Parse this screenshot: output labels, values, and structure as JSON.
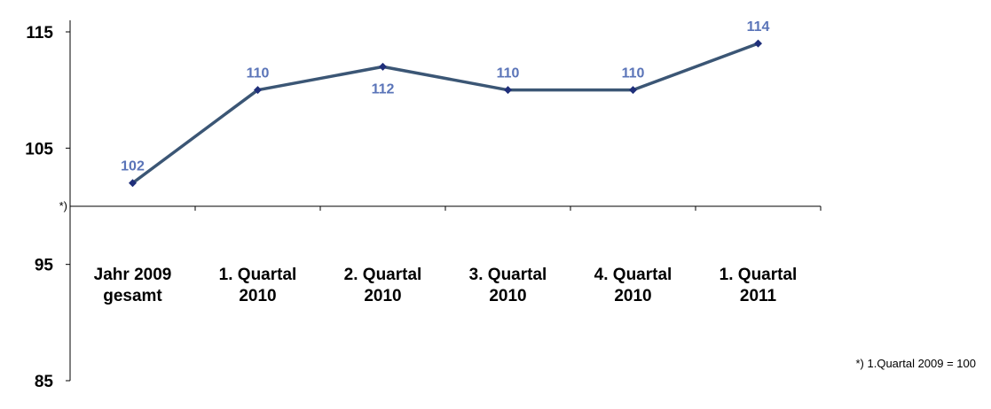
{
  "chart_data": {
    "type": "line",
    "categories": [
      [
        "Jahr 2009",
        "gesamt"
      ],
      [
        "1. Quartal",
        "2010"
      ],
      [
        "2. Quartal",
        "2010"
      ],
      [
        "3. Quartal",
        "2010"
      ],
      [
        "4. Quartal",
        "2010"
      ],
      [
        "1. Quartal",
        "2011"
      ]
    ],
    "series": [
      {
        "values": [
          102,
          110,
          112,
          110,
          110,
          114
        ]
      }
    ],
    "data_labels": [
      "102",
      "110",
      "112",
      "110",
      "110",
      "114"
    ],
    "data_label_position": [
      "above",
      "above",
      "below",
      "above",
      "above",
      "above"
    ],
    "y_ticks": [
      "115",
      "105",
      "95",
      "85"
    ],
    "ylim": [
      85,
      116
    ],
    "x_axis_crosses_at": 100,
    "x_axis_marker": "*)",
    "footnote": "*) 1.Quartal 2009 = 100",
    "grid": false,
    "legend": "none",
    "colors": {
      "line": "#3b5675",
      "marker": "#1f2f7a",
      "label": "#5a74b8",
      "axis": "#000000"
    }
  }
}
